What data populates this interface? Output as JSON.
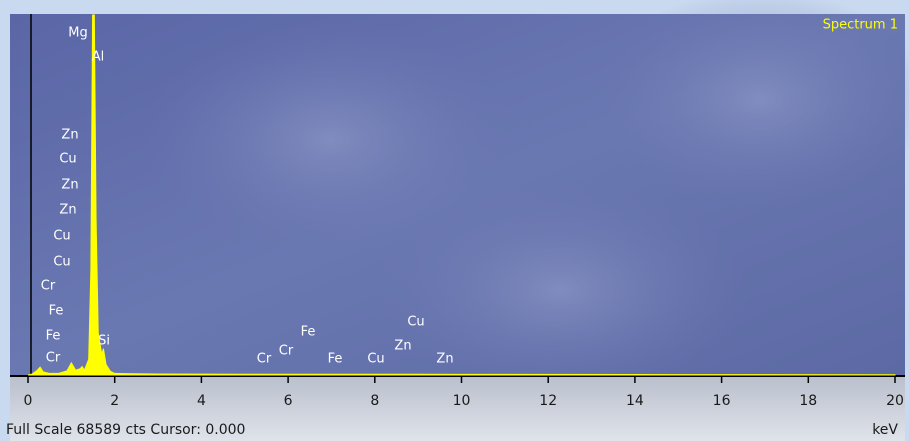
{
  "chart_data": {
    "type": "line",
    "title": "Spectrum 1",
    "x_label": "keV",
    "footer": "Full Scale 68589 cts Cursor: 0.000",
    "x": [
      0,
      0.1,
      0.2,
      0.28,
      0.35,
      0.5,
      0.7,
      0.9,
      1.0,
      1.1,
      1.2,
      1.25,
      1.3,
      1.4,
      1.45,
      1.49,
      1.53,
      1.57,
      1.62,
      1.7,
      1.74,
      1.8,
      1.9,
      2.0,
      3,
      5,
      6,
      7,
      8,
      9,
      10,
      15,
      20
    ],
    "values": [
      0,
      200,
      800,
      1500,
      600,
      300,
      300,
      800,
      2300,
      900,
      1200,
      1600,
      900,
      3000,
      20000,
      68589,
      68589,
      30000,
      8000,
      4000,
      5000,
      2000,
      700,
      300,
      200,
      150,
      150,
      150,
      150,
      150,
      120,
      80,
      50
    ],
    "color": "#ffff00",
    "xlim": [
      0,
      20
    ],
    "ylim": [
      0,
      68589
    ],
    "xticks": [
      0,
      2,
      4,
      6,
      8,
      10,
      12,
      14,
      16,
      18,
      20
    ],
    "peak_labels": [
      "Mg",
      "Al",
      "Zn",
      "Cu",
      "Zn",
      "Zn",
      "Cu",
      "Cu",
      "Cr",
      "Fe",
      "Fe",
      "Cr",
      "Si",
      "Cr",
      "Cr",
      "Fe",
      "Fe",
      "Cu",
      "Zn",
      "Cu",
      "Zn"
    ]
  }
}
